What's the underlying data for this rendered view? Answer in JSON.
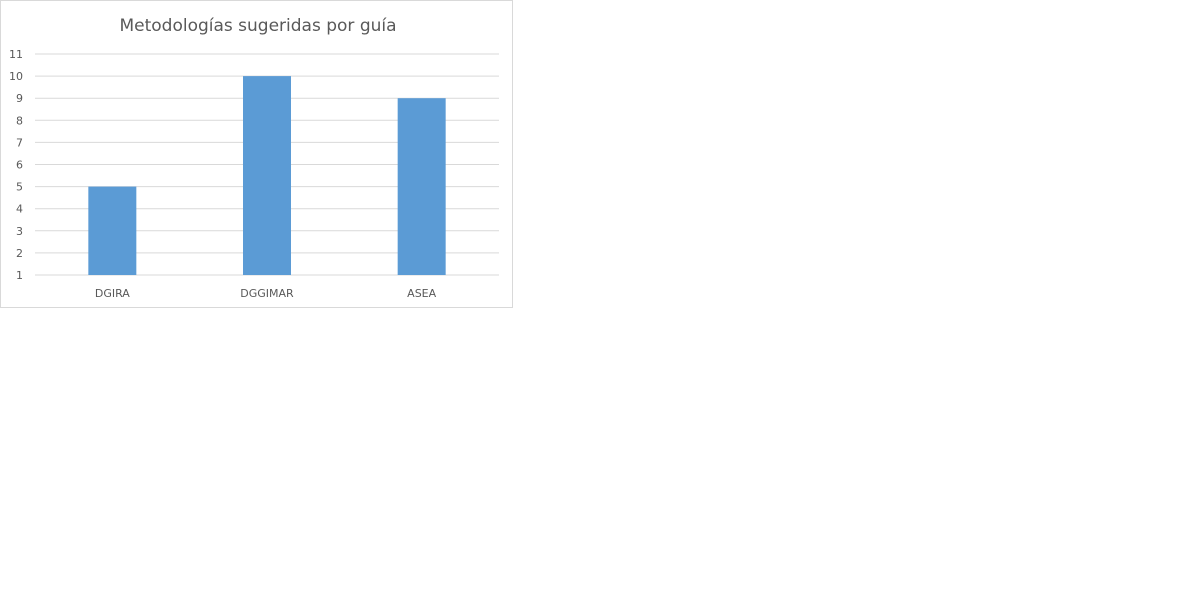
{
  "chart_data": {
    "type": "bar",
    "title": "Metodologías sugeridas por guía",
    "categories": [
      "DGIRA",
      "DGGIMAR",
      "ASEA"
    ],
    "series": [
      {
        "values": [
          5,
          10,
          9
        ],
        "color": "#5b9bd5"
      }
    ],
    "ylim": [
      1,
      11
    ],
    "yticks": [
      1,
      2,
      3,
      4,
      5,
      6,
      7,
      8,
      9,
      10,
      11
    ],
    "grid": true,
    "legend": "none"
  }
}
